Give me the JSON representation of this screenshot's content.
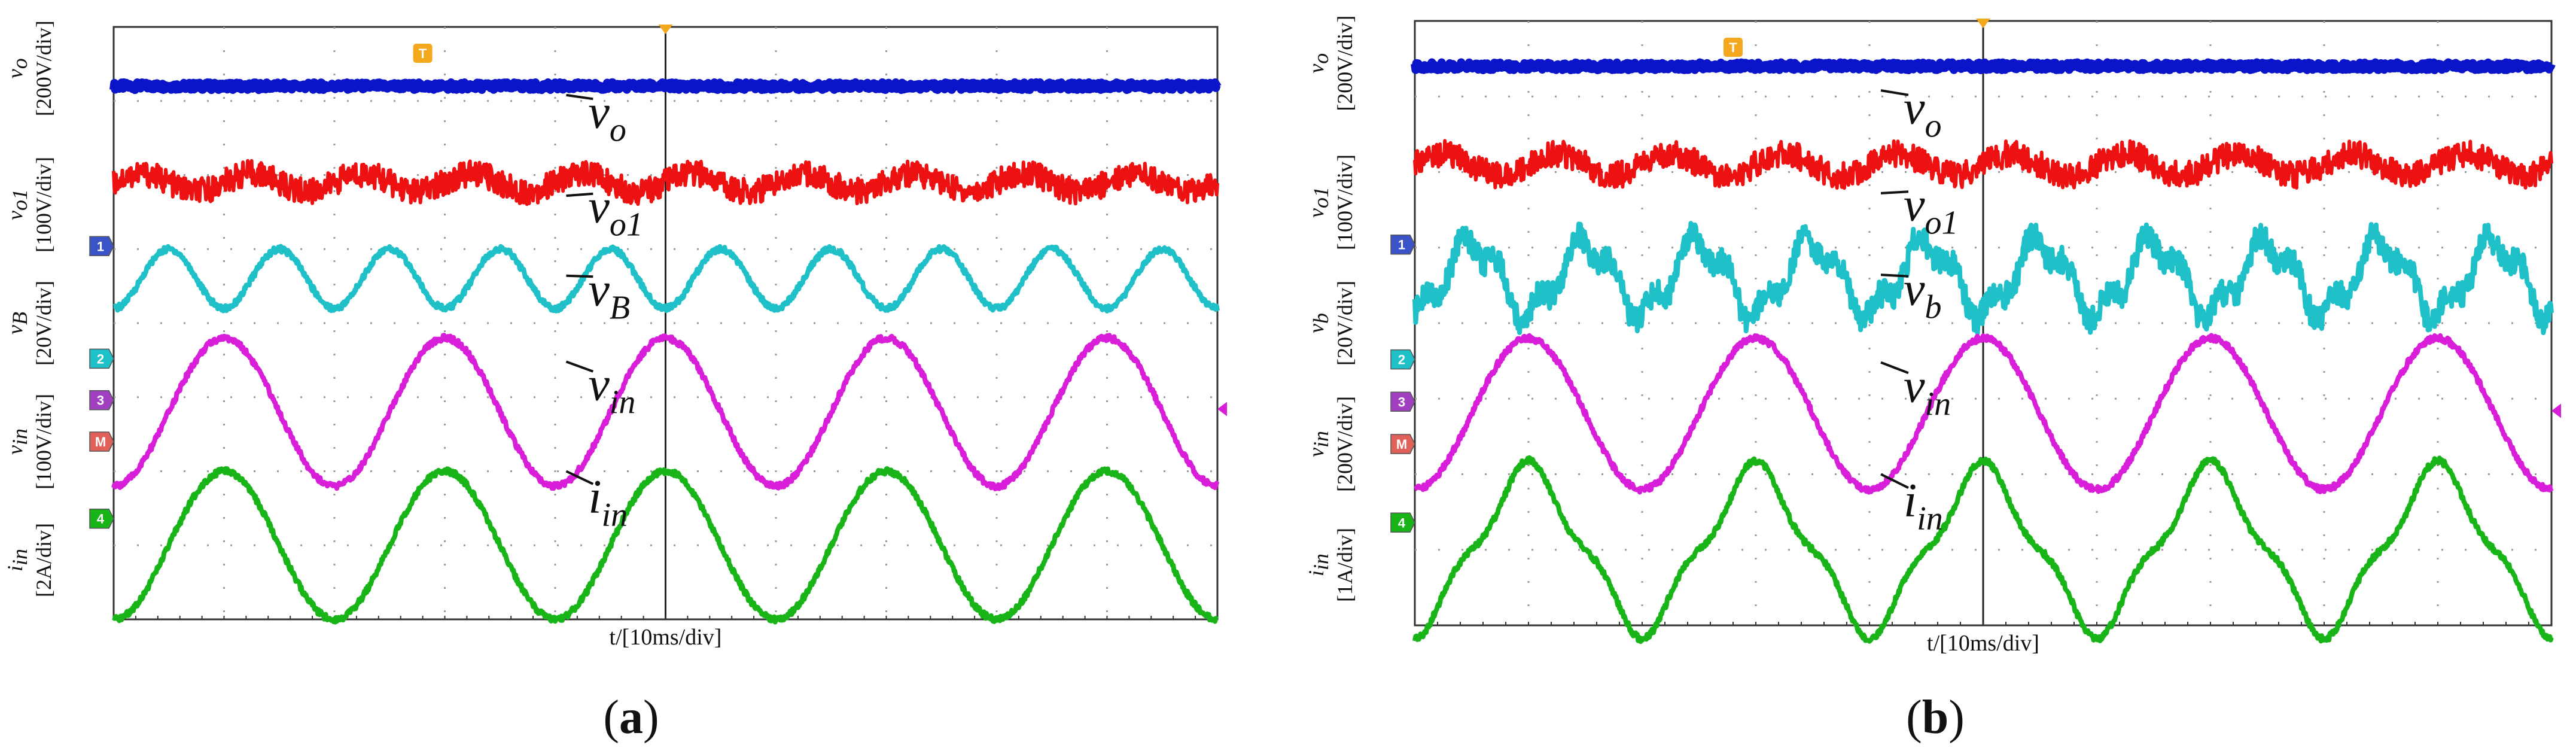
{
  "figure": {
    "panels": [
      {
        "caption_open": "(",
        "caption_letter": "a",
        "caption_close": ")",
        "x_axis_label": "t/[10ms/div]",
        "y_axis_label_lines": [
          {
            "var": "v",
            "sub": "o",
            "unit": "[200V/div]"
          },
          {
            "var": "v",
            "sub": "o1",
            "unit": "[100V/div]"
          },
          {
            "var": "v",
            "sub": "B",
            "unit": "[20V/div]"
          },
          {
            "var": "v",
            "sub": "in",
            "unit": "[100V/div]"
          },
          {
            "var": "i",
            "sub": "in",
            "unit": "[2A/div]"
          }
        ],
        "annotations": [
          {
            "var": "v",
            "sub": "o"
          },
          {
            "var": "v",
            "sub": "o1"
          },
          {
            "var": "v",
            "sub": "B"
          },
          {
            "var": "v",
            "sub": "in"
          },
          {
            "var": "i",
            "sub": "in"
          }
        ],
        "channel_markers": [
          "1",
          "2",
          "3",
          "M",
          "4"
        ],
        "trigger_marker": "T"
      },
      {
        "caption_open": "(",
        "caption_letter": "b",
        "caption_close": ")",
        "x_axis_label": "t/[10ms/div]",
        "y_axis_label_lines": [
          {
            "var": "v",
            "sub": "o",
            "unit": "[200V/div]"
          },
          {
            "var": "v",
            "sub": "o1",
            "unit": "[100V/div]"
          },
          {
            "var": "v",
            "sub": "b",
            "unit": "[20V/div]"
          },
          {
            "var": "v",
            "sub": "in",
            "unit": "[200V/div]"
          },
          {
            "var": "i",
            "sub": "in",
            "unit": "[1A/div]"
          }
        ],
        "annotations": [
          {
            "var": "v",
            "sub": "o"
          },
          {
            "var": "v",
            "sub": "o1"
          },
          {
            "var": "v",
            "sub": "b"
          },
          {
            "var": "v",
            "sub": "in"
          },
          {
            "var": "i",
            "sub": "in"
          }
        ],
        "channel_markers": [
          "1",
          "2",
          "3",
          "M",
          "4"
        ],
        "trigger_marker": "T"
      }
    ]
  },
  "chart_data": [
    {
      "type": "line",
      "title": "(a)",
      "xlabel": "t/[10ms/div]",
      "x_unit": "ms",
      "x_range": [
        0,
        100
      ],
      "grid": true,
      "series": [
        {
          "name": "vo",
          "color": "#0a14c8",
          "scale": "200V/div",
          "waveform": "dc",
          "level_div": 3.2,
          "ripple_div": 0.1
        },
        {
          "name": "vo1",
          "color": "#ee1111",
          "scale": "100V/div",
          "waveform": "dc_with_ripple",
          "level_div": 1.9,
          "ripple_amplitude_div": 0.12,
          "ripple_period_ms": 10
        },
        {
          "name": "vB",
          "color": "#20c0c8",
          "scale": "20V/div",
          "waveform": "sine",
          "offset_div": 0.6,
          "amplitude_div": 0.4,
          "period_ms": 10
        },
        {
          "name": "vin",
          "color": "#d81ed8",
          "scale": "100V/div",
          "waveform": "sine",
          "offset_div": -1.2,
          "amplitude_div": 1.0,
          "period_ms": 20
        },
        {
          "name": "iin",
          "color": "#18b418",
          "scale": "2A/div",
          "waveform": "sine",
          "offset_div": -3.0,
          "amplitude_div": 1.0,
          "period_ms": 20
        }
      ]
    },
    {
      "type": "line",
      "title": "(b)",
      "xlabel": "t/[10ms/div]",
      "x_unit": "ms",
      "x_range": [
        0,
        100
      ],
      "grid": true,
      "series": [
        {
          "name": "vo",
          "color": "#0a14c8",
          "scale": "200V/div",
          "waveform": "dc",
          "level_div": 3.4,
          "ripple_div": 0.1
        },
        {
          "name": "vo1",
          "color": "#ee1111",
          "scale": "100V/div",
          "waveform": "dc_with_ripple",
          "level_div": 2.1,
          "ripple_amplitude_div": 0.14,
          "ripple_period_ms": 10
        },
        {
          "name": "vb",
          "color": "#20c0c8",
          "scale": "20V/div",
          "waveform": "distorted_sine",
          "offset_div": 0.6,
          "amplitude_div": 0.45,
          "period_ms": 10
        },
        {
          "name": "vin",
          "color": "#d81ed8",
          "scale": "200V/div",
          "waveform": "sine",
          "offset_div": -1.2,
          "amplitude_div": 1.0,
          "period_ms": 20
        },
        {
          "name": "iin",
          "color": "#18b418",
          "scale": "1A/div",
          "waveform": "flattened_sine",
          "offset_div": -3.0,
          "amplitude_div": 1.0,
          "period_ms": 20
        }
      ]
    }
  ]
}
